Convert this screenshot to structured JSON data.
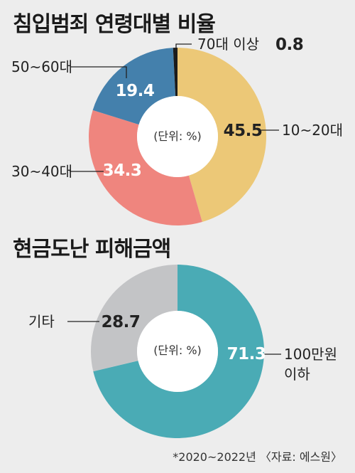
{
  "chart_data": [
    {
      "type": "pie",
      "title": "침입범죄 연령대별 비율",
      "unit_label": "(단위: %)",
      "categories": [
        "10~20대",
        "30~40대",
        "50~60대",
        "70대 이상"
      ],
      "values": [
        45.5,
        34.3,
        19.4,
        0.8
      ],
      "value_labels": [
        "45.5",
        "34.3",
        "19.4",
        "0.8"
      ],
      "colors": [
        "#ecc877",
        "#ef857e",
        "#4480ac",
        "#1b1b1b"
      ],
      "value_colors": [
        "#222222",
        "#ffffff",
        "#ffffff",
        "#222222"
      ]
    },
    {
      "type": "pie",
      "title": "현금도난 피해금액",
      "unit_label": "(단위: %)",
      "categories": [
        "100만원 이하",
        "기타"
      ],
      "category_lines": [
        [
          "100만원",
          "이하"
        ],
        [
          "기타"
        ]
      ],
      "values": [
        71.3,
        28.7
      ],
      "value_labels": [
        "71.3",
        "28.7"
      ],
      "colors": [
        "#4aabb5",
        "#c3c4c6"
      ],
      "value_colors": [
        "#ffffff",
        "#222222"
      ]
    }
  ],
  "footnote": "*2020~2022년 〈자료: 에스원〉"
}
